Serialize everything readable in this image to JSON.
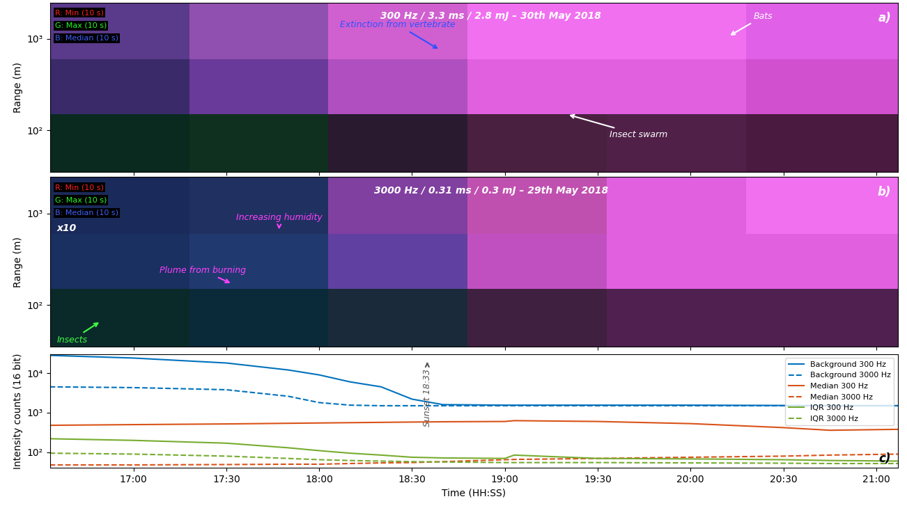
{
  "chart_data": [
    {
      "type": "heatmap",
      "title": "300 Hz / 3.3 ms / 2.8 mJ – 30th May 2018",
      "ylabel": "Range (m)",
      "log": "y",
      "tick_labels": "y",
      "xlim": [
        993,
        1267
      ],
      "xticks": [
        {
          "value": 1020,
          "label": "17:00"
        },
        {
          "value": 1050,
          "label": "17:30"
        },
        {
          "value": 1080,
          "label": "18:00"
        },
        {
          "value": 1110,
          "label": "18:30"
        },
        {
          "value": 1140,
          "label": "19:00"
        },
        {
          "value": 1170,
          "label": "19:30"
        },
        {
          "value": 1200,
          "label": "20:00"
        },
        {
          "value": 1230,
          "label": "20:30"
        },
        {
          "value": 1260,
          "label": "21:00"
        }
      ],
      "ylim": [
        35,
        2500
      ],
      "yticks": [
        {
          "value": 100,
          "label": "10²"
        },
        {
          "value": 1000,
          "label": "10³"
        }
      ],
      "x_edges": [
        993,
        1038,
        1083,
        1128,
        1173,
        1218,
        1267
      ],
      "y_edges": [
        35,
        150,
        600,
        2500
      ],
      "cells": [
        [
          "#0a2a20",
          "#10301f",
          "#2a1a30",
          "#4a2040",
          "#502048",
          "#4a1a40"
        ],
        [
          "#3a2a6a",
          "#6a3a9a",
          "#b050c0",
          "#e060e0",
          "#e060e0",
          "#d050d0"
        ],
        [
          "#5a3a8a",
          "#9050b0",
          "#d060d0",
          "#f070f0",
          "#f070f0",
          "#e060e8"
        ]
      ],
      "channels": [
        {
          "name": "R: Min (10 s)",
          "color": "#ff2020"
        },
        {
          "name": "G: Max (10 s)",
          "color": "#20ff20"
        },
        {
          "name": "B: Median (10 s)",
          "color": "#4060ff"
        }
      ],
      "annotations": [
        {
          "text": "a)",
          "color": "#ffffff"
        },
        {
          "text": "Extinction from vertebrate",
          "color": "#3050ff"
        },
        {
          "text": "Bats",
          "color": "#ffffff"
        },
        {
          "text": "Insect swarm",
          "color": "#ffffff"
        }
      ]
    },
    {
      "type": "heatmap",
      "title": "3000 Hz / 0.31 ms / 0.3 mJ – 29th May 2018",
      "ylabel": "Range (m)",
      "log": "y",
      "tick_labels": "y",
      "xlim": [
        993,
        1267
      ],
      "xticks": [
        {
          "value": 1020,
          "label": "17:00"
        },
        {
          "value": 1050,
          "label": "17:30"
        },
        {
          "value": 1080,
          "label": "18:00"
        },
        {
          "value": 1110,
          "label": "18:30"
        },
        {
          "value": 1140,
          "label": "19:00"
        },
        {
          "value": 1170,
          "label": "19:30"
        },
        {
          "value": 1200,
          "label": "20:00"
        },
        {
          "value": 1230,
          "label": "20:30"
        },
        {
          "value": 1260,
          "label": "21:00"
        }
      ],
      "ylim": [
        35,
        2500
      ],
      "yticks": [
        {
          "value": 100,
          "label": "10²"
        },
        {
          "value": 1000,
          "label": "10³"
        }
      ],
      "x_edges": [
        993,
        1038,
        1083,
        1128,
        1173,
        1218,
        1267
      ],
      "y_edges": [
        35,
        150,
        600,
        2500
      ],
      "cells": [
        [
          "#0a2a2a",
          "#0a2a3a",
          "#1a2a3a",
          "#402040",
          "#502050",
          "#502050"
        ],
        [
          "#1a3060",
          "#203a70",
          "#6040a0",
          "#c050c0",
          "#e060e0",
          "#e060e0"
        ],
        [
          "#1a2a5a",
          "#203060",
          "#8040a0",
          "#c050b0",
          "#e060e0",
          "#f070f0"
        ]
      ],
      "channels": [
        {
          "name": "R: Min (10 s)",
          "color": "#ff2020"
        },
        {
          "name": "G: Max (10 s)",
          "color": "#20ff20"
        },
        {
          "name": "B: Median (10 s)",
          "color": "#4060ff"
        }
      ],
      "annotations": [
        {
          "text": "b)",
          "color": "#ffffff"
        },
        {
          "text": "x10",
          "color": "#ffffff"
        },
        {
          "text": "Plume from burning",
          "color": "#ff40ff"
        },
        {
          "text": "Increasing humidity",
          "color": "#ff40ff"
        },
        {
          "text": "Insects",
          "color": "#40ff40"
        }
      ]
    },
    {
      "type": "line",
      "xlabel": "Time (HH:SS)",
      "ylabel": "Intensity counts (16 bit)",
      "log": "y",
      "legend": "upper right",
      "xlim": [
        993,
        1267
      ],
      "xticks": [
        {
          "value": 1020,
          "label": "17:00"
        },
        {
          "value": 1050,
          "label": "17:30"
        },
        {
          "value": 1080,
          "label": "18:00"
        },
        {
          "value": 1110,
          "label": "18:30"
        },
        {
          "value": 1140,
          "label": "19:00"
        },
        {
          "value": 1170,
          "label": "19:30"
        },
        {
          "value": 1200,
          "label": "20:00"
        },
        {
          "value": 1230,
          "label": "20:30"
        },
        {
          "value": 1260,
          "label": "21:00"
        }
      ],
      "ylim": [
        40,
        30000
      ],
      "yticks": [
        {
          "value": 100,
          "label": "10²"
        },
        {
          "value": 1000,
          "label": "10³"
        },
        {
          "value": 10000,
          "label": "10⁴"
        }
      ],
      "x": [
        993,
        1020,
        1050,
        1070,
        1080,
        1090,
        1100,
        1110,
        1120,
        1140,
        1143,
        1170,
        1200,
        1230,
        1245,
        1267
      ],
      "series": [
        {
          "name": "Background 300 Hz",
          "color": "#0072bd",
          "line_style": "solid",
          "values": [
            28000,
            24000,
            18000,
            12000,
            9000,
            6000,
            4500,
            2200,
            1600,
            1550,
            1550,
            1550,
            1550,
            1520,
            1500,
            1500
          ]
        },
        {
          "name": "Background 3000 Hz",
          "color": "#0072bd",
          "line_style": "dashed",
          "values": [
            4500,
            4300,
            3800,
            2600,
            1800,
            1550,
            1500,
            1500,
            1500,
            1500,
            1500,
            1500,
            1500,
            1500,
            1500,
            1500
          ]
        },
        {
          "name": "Median 300 Hz",
          "color": "#d95319",
          "line_style": "solid",
          "values": [
            480,
            500,
            520,
            540,
            550,
            560,
            570,
            580,
            590,
            600,
            630,
            600,
            530,
            420,
            360,
            380
          ]
        },
        {
          "name": "Median 3000 Hz",
          "color": "#d95319",
          "line_style": "dashed",
          "values": [
            48,
            48,
            49,
            50,
            50,
            52,
            54,
            55,
            58,
            65,
            66,
            70,
            75,
            80,
            85,
            90
          ]
        },
        {
          "name": "IQR 300 Hz",
          "color": "#77ac30",
          "line_style": "solid",
          "values": [
            220,
            200,
            170,
            130,
            110,
            95,
            85,
            75,
            72,
            70,
            85,
            70,
            68,
            65,
            62,
            60
          ]
        },
        {
          "name": "IQR 3000 Hz",
          "color": "#77ac30",
          "line_style": "dashed",
          "values": [
            95,
            90,
            80,
            70,
            65,
            62,
            60,
            58,
            57,
            55,
            55,
            55,
            54,
            53,
            52,
            52
          ]
        }
      ],
      "annotations": [
        {
          "text": "Sunset 18:33",
          "color": "#555555"
        },
        {
          "text": "c)",
          "color": "#000000"
        }
      ]
    }
  ]
}
